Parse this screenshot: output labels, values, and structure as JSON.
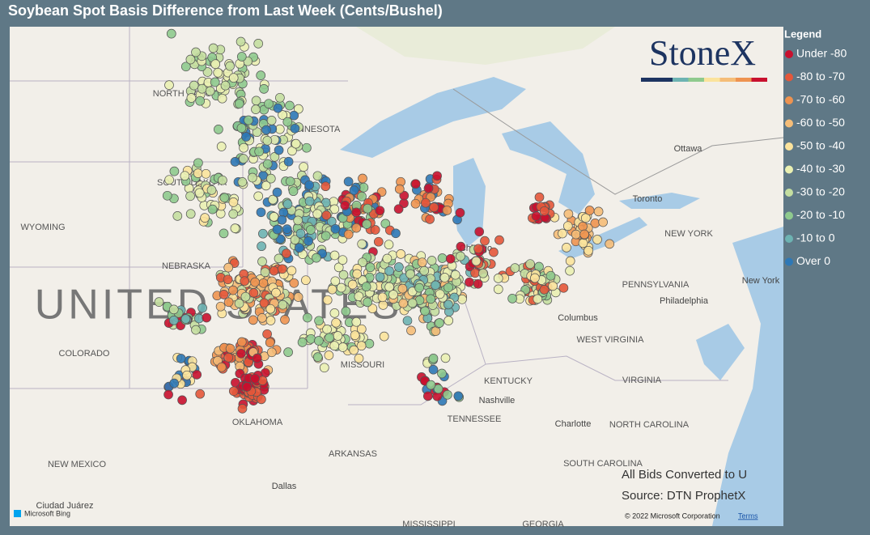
{
  "header": {
    "title": "Soybean Spot Basis Difference from Last Week (Cents/Bushel)"
  },
  "logo": "StoneX",
  "legend": {
    "title": "Legend",
    "items": [
      {
        "label": "Under -80",
        "color": "#c8102e"
      },
      {
        "label": "-80 to -70",
        "color": "#e4573a"
      },
      {
        "label": "-70 to -60",
        "color": "#ee9350"
      },
      {
        "label": "-60 to -50",
        "color": "#f5bd78"
      },
      {
        "label": "-50 to -40",
        "color": "#fbe39c"
      },
      {
        "label": "-40 to -30",
        "color": "#eaf0b2"
      },
      {
        "label": "-30 to -20",
        "color": "#c4dea0"
      },
      {
        "label": "-20 to -10",
        "color": "#8fca8e"
      },
      {
        "label": "-10 to 0",
        "color": "#6db3b2"
      },
      {
        "label": "Over 0",
        "color": "#2e78b6"
      }
    ]
  },
  "map": {
    "country_label": "UNITED STATES",
    "places": [
      "NORTH DAKOTA",
      "MINNESOTA",
      "SOUTH DAKOTA",
      "WYOMING",
      "NEBRASKA",
      "COLORADO",
      "MISSOURI",
      "KENTUCKY",
      "TENNESSEE",
      "ARKANSAS",
      "OKLAHOMA",
      "NEW MEXICO",
      "VIRGINIA",
      "WEST VIRGINIA",
      "NORTH CAROLINA",
      "SOUTH CAROLINA",
      "GEORGIA",
      "MISSISSIPPI",
      "PENNSYLVANIA",
      "NEW YORK",
      "Ottawa",
      "Toronto",
      "Chicago",
      "Columbus",
      "Nashville",
      "Charlotte",
      "Dallas",
      "Philadelphia",
      "New York",
      "Ciudad Juárez"
    ]
  },
  "notes": [
    "All Bids Converted to U",
    "Source: DTN ProphetX"
  ],
  "attribution": {
    "copyright": "© 2022 Microsoft Corporation",
    "terms": "Terms",
    "bing": "Microsoft Bing"
  }
}
